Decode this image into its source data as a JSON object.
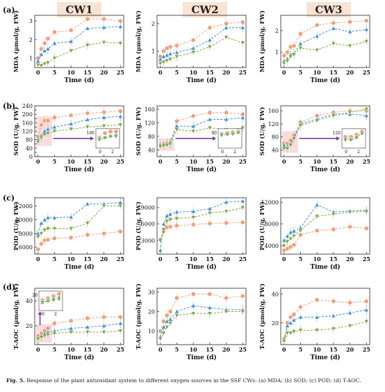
{
  "columns": [
    "CW1",
    "CW2",
    "CW3"
  ],
  "rows": [
    {
      "tag": "(a)",
      "ylabel": "MDA (μmol/g, FW)"
    },
    {
      "tag": "(b)",
      "ylabel": "SOD (U/g, FW)"
    },
    {
      "tag": "(c)",
      "ylabel": "POD (U/g, FW)"
    },
    {
      "tag": "(d)",
      "ylabel": "T-AOC (μmol/g, FW)"
    }
  ],
  "xlabel": "Time (d)",
  "caption": {
    "label": "Fig. 5.",
    "text": "Response of the plant antioxidant system to different oxygen sources in the SSF CWs: (a) MDA; (b) SOD; (c) POD; (d) T-AOC."
  },
  "colors": {
    "orange": "#f0a07a",
    "blue": "#3a8fd0",
    "green": "#7ea644",
    "highlight": "#f9dcdc",
    "arrow": "#7a3b9c"
  },
  "chart_data": [
    {
      "id": "a1",
      "type": "line",
      "x": [
        0,
        1,
        2,
        3,
        5,
        10,
        15,
        20,
        25
      ],
      "xlim": [
        -1,
        26
      ],
      "ylim": [
        0.5,
        3.3
      ],
      "yticks": [
        1,
        2,
        3
      ],
      "series": [
        {
          "marker": "circle",
          "color": "orange",
          "values": [
            1.0,
            1.5,
            1.8,
            2.05,
            2.4,
            2.5,
            3.1,
            3.1,
            3.0
          ]
        },
        {
          "marker": "triangle",
          "color": "blue",
          "values": [
            0.85,
            1.2,
            1.4,
            1.5,
            1.8,
            1.9,
            2.6,
            2.65,
            2.7
          ]
        },
        {
          "marker": "tri-down",
          "color": "green",
          "values": [
            0.65,
            0.6,
            0.7,
            0.75,
            1.0,
            1.4,
            1.7,
            1.85,
            1.8
          ]
        }
      ]
    },
    {
      "id": "a2",
      "type": "line",
      "x": [
        0,
        1,
        2,
        3,
        5,
        10,
        15,
        20,
        25
      ],
      "xlim": [
        -1,
        26
      ],
      "ylim": [
        0.4,
        2.3
      ],
      "yticks": [
        1,
        2
      ],
      "series": [
        {
          "marker": "circle",
          "color": "orange",
          "values": [
            0.8,
            1.0,
            1.1,
            1.15,
            1.2,
            1.4,
            1.85,
            2.0,
            2.05
          ]
        },
        {
          "marker": "triangle",
          "color": "blue",
          "values": [
            0.7,
            0.8,
            0.85,
            0.9,
            0.95,
            1.1,
            1.4,
            1.85,
            1.85
          ]
        },
        {
          "marker": "tri-down",
          "color": "green",
          "values": [
            0.55,
            0.6,
            0.65,
            0.7,
            0.8,
            0.95,
            1.15,
            1.5,
            1.3
          ]
        }
      ]
    },
    {
      "id": "a3",
      "type": "line",
      "x": [
        0,
        1,
        2,
        3,
        5,
        10,
        15,
        20,
        25
      ],
      "xlim": [
        -1,
        26
      ],
      "ylim": [
        0.3,
        2.7
      ],
      "yticks": [
        1,
        2
      ],
      "series": [
        {
          "marker": "circle",
          "color": "orange",
          "values": [
            0.85,
            1.0,
            1.25,
            1.3,
            1.85,
            2.25,
            2.35,
            2.4,
            2.45
          ]
        },
        {
          "marker": "triangle",
          "color": "blue",
          "values": [
            0.6,
            0.7,
            0.9,
            0.95,
            1.4,
            1.75,
            2.1,
            1.95,
            2.05
          ]
        },
        {
          "marker": "tri-down",
          "color": "green",
          "values": [
            0.5,
            0.6,
            0.8,
            0.9,
            1.2,
            1.1,
            1.4,
            1.3,
            1.5
          ]
        }
      ]
    },
    {
      "id": "b1",
      "type": "line",
      "x": [
        0,
        1,
        2,
        3,
        5,
        10,
        15,
        20,
        25
      ],
      "xlim": [
        -1,
        26
      ],
      "ylim": [
        0,
        240
      ],
      "yticks": [
        0,
        20,
        40,
        60,
        80,
        100,
        120,
        140,
        160,
        180,
        200,
        220,
        240
      ],
      "series": [
        {
          "marker": "circle",
          "color": "orange",
          "values": [
            95,
            150,
            170,
            170,
            185,
            195,
            205,
            210,
            215
          ]
        },
        {
          "marker": "triangle",
          "color": "blue",
          "values": [
            80,
            100,
            120,
            130,
            140,
            155,
            175,
            185,
            190
          ]
        },
        {
          "marker": "tri-down",
          "color": "green",
          "values": [
            70,
            90,
            105,
            110,
            120,
            130,
            140,
            145,
            150
          ]
        }
      ],
      "inset": {
        "xticks": [
          0,
          2
        ],
        "yticks": [
          100
        ],
        "label_y": 100
      }
    },
    {
      "id": "b2",
      "type": "line",
      "x": [
        0,
        1,
        2,
        3,
        5,
        10,
        15,
        20,
        25
      ],
      "xlim": [
        -1,
        26
      ],
      "ylim": [
        20,
        170
      ],
      "yticks": [
        40,
        80,
        120,
        160
      ],
      "series": [
        {
          "marker": "circle",
          "color": "orange",
          "values": [
            55,
            58,
            60,
            62,
            125,
            140,
            150,
            150,
            145
          ]
        },
        {
          "marker": "triangle",
          "color": "blue",
          "values": [
            55,
            56,
            58,
            60,
            110,
            110,
            130,
            130,
            135
          ]
        },
        {
          "marker": "tri-down",
          "color": "green",
          "values": [
            50,
            52,
            54,
            58,
            100,
            95,
            105,
            100,
            105
          ]
        }
      ],
      "inset": {
        "xticks": [
          0,
          2
        ],
        "yticks": [
          40,
          80
        ],
        "label_y": 80
      }
    },
    {
      "id": "b3",
      "type": "line",
      "x": [
        0,
        1,
        2,
        3,
        5,
        10,
        15,
        20,
        25
      ],
      "xlim": [
        -1,
        26
      ],
      "ylim": [
        20,
        175
      ],
      "yticks": [
        40,
        80,
        120,
        160
      ],
      "series": [
        {
          "marker": "circle",
          "color": "orange",
          "values": [
            60,
            60,
            70,
            85,
            125,
            145,
            155,
            160,
            160
          ]
        },
        {
          "marker": "triangle",
          "color": "blue",
          "values": [
            55,
            50,
            60,
            80,
            120,
            135,
            150,
            150,
            145
          ]
        },
        {
          "marker": "tri-down",
          "color": "green",
          "values": [
            45,
            45,
            55,
            75,
            115,
            130,
            145,
            155,
            165
          ]
        }
      ],
      "inset": {
        "xticks": [
          0,
          2
        ],
        "yticks": [
          40,
          80,
          120
        ],
        "label_y": 120
      }
    },
    {
      "id": "c1",
      "type": "line",
      "x": [
        0,
        1,
        2,
        3,
        5,
        10,
        15,
        20,
        25
      ],
      "xlim": [
        -1,
        26
      ],
      "ylim": [
        5000,
        13200
      ],
      "yticks": [
        6000,
        8000,
        10000,
        12000
      ],
      "series": [
        {
          "marker": "circle",
          "color": "orange",
          "values": [
            5700,
            6500,
            7000,
            7100,
            7300,
            7400,
            7800,
            8000,
            8300
          ]
        },
        {
          "marker": "triangle",
          "color": "blue",
          "values": [
            8000,
            9500,
            10000,
            10300,
            10300,
            10400,
            12300,
            12300,
            12500
          ]
        },
        {
          "marker": "tri-down",
          "color": "green",
          "values": [
            7500,
            8000,
            8500,
            8700,
            8700,
            8700,
            9500,
            12000,
            12000
          ]
        }
      ]
    },
    {
      "id": "c2",
      "type": "line",
      "x": [
        0,
        1,
        2,
        3,
        5,
        10,
        15,
        20,
        25
      ],
      "xlim": [
        -1,
        26
      ],
      "ylim": [
        500,
        10800
      ],
      "yticks": [
        3000,
        6000,
        9000
      ],
      "series": [
        {
          "marker": "circle",
          "color": "orange",
          "values": [
            3200,
            5000,
            5400,
            5500,
            5700,
            5900,
            6100,
            6200,
            6300
          ]
        },
        {
          "marker": "triangle",
          "color": "blue",
          "values": [
            1200,
            6000,
            7500,
            7800,
            8200,
            8300,
            8800,
            10000,
            10200
          ]
        },
        {
          "marker": "tri-down",
          "color": "green",
          "values": [
            3000,
            4500,
            6500,
            6800,
            7000,
            7200,
            8000,
            8300,
            9000
          ]
        }
      ]
    },
    {
      "id": "c3",
      "type": "line",
      "x": [
        0,
        1,
        2,
        3,
        5,
        10,
        15,
        20,
        25
      ],
      "xlim": [
        -1,
        26
      ],
      "ylim": [
        2500,
        12800
      ],
      "yticks": [
        4000,
        8000,
        12000
      ],
      "series": [
        {
          "marker": "circle",
          "color": "orange",
          "values": [
            3200,
            3500,
            3800,
            4200,
            6000,
            6800,
            7000,
            7500,
            7200
          ]
        },
        {
          "marker": "triangle",
          "color": "blue",
          "values": [
            5000,
            5800,
            6500,
            6700,
            7300,
            11500,
            10200,
            10400,
            10500
          ]
        },
        {
          "marker": "tri-down",
          "color": "green",
          "values": [
            4000,
            4800,
            5300,
            5800,
            6800,
            9400,
            9800,
            10200,
            10300
          ]
        }
      ]
    },
    {
      "id": "d1",
      "type": "line",
      "x": [
        0,
        1,
        2,
        3,
        5,
        10,
        15,
        20,
        25
      ],
      "xlim": [
        -1,
        26
      ],
      "ylim": [
        5,
        50
      ],
      "yticks": [
        20,
        40
      ],
      "series": [
        {
          "marker": "circle",
          "color": "orange",
          "values": [
            12,
            14,
            16,
            18,
            22,
            24,
            26,
            27,
            27
          ]
        },
        {
          "marker": "triangle",
          "color": "blue",
          "values": [
            10,
            12,
            14,
            15,
            16,
            18,
            19,
            20,
            22
          ]
        },
        {
          "marker": "tri-down",
          "color": "green",
          "values": [
            10,
            11,
            12,
            13,
            14,
            15,
            15,
            15,
            16
          ]
        }
      ],
      "inset": {
        "xticks": [
          0,
          2
        ],
        "yticks": [
          10,
          20
        ],
        "label_y": 20
      }
    },
    {
      "id": "d2",
      "type": "line",
      "x": [
        0,
        1,
        2,
        3,
        5,
        10,
        15,
        20,
        25
      ],
      "xlim": [
        -1,
        26
      ],
      "ylim": [
        3,
        32
      ],
      "yticks": [
        10,
        20,
        30
      ],
      "series": [
        {
          "marker": "circle",
          "color": "orange",
          "values": [
            10,
            15,
            18,
            20,
            27,
            29,
            29,
            27,
            28
          ]
        },
        {
          "marker": "triangle",
          "color": "blue",
          "values": [
            7,
            12,
            15,
            16,
            20,
            23,
            22,
            21,
            21
          ]
        },
        {
          "marker": "tri-down",
          "color": "green",
          "values": [
            6,
            9,
            12,
            14,
            18,
            19,
            19,
            20,
            20
          ]
        }
      ]
    },
    {
      "id": "d3",
      "type": "line",
      "x": [
        0,
        1,
        2,
        3,
        5,
        10,
        15,
        20,
        25
      ],
      "xlim": [
        -1,
        26
      ],
      "ylim": [
        5,
        44
      ],
      "yticks": [
        20,
        40
      ],
      "series": [
        {
          "marker": "circle",
          "color": "orange",
          "values": [
            9,
            20,
            24,
            26,
            31,
            36,
            35,
            34,
            35
          ]
        },
        {
          "marker": "triangle",
          "color": "blue",
          "values": [
            8,
            18,
            20,
            22,
            24,
            24,
            25,
            27,
            29
          ]
        },
        {
          "marker": "tri-down",
          "color": "green",
          "values": [
            8,
            13,
            13,
            14,
            15,
            15,
            16,
            18,
            21
          ]
        }
      ]
    }
  ]
}
